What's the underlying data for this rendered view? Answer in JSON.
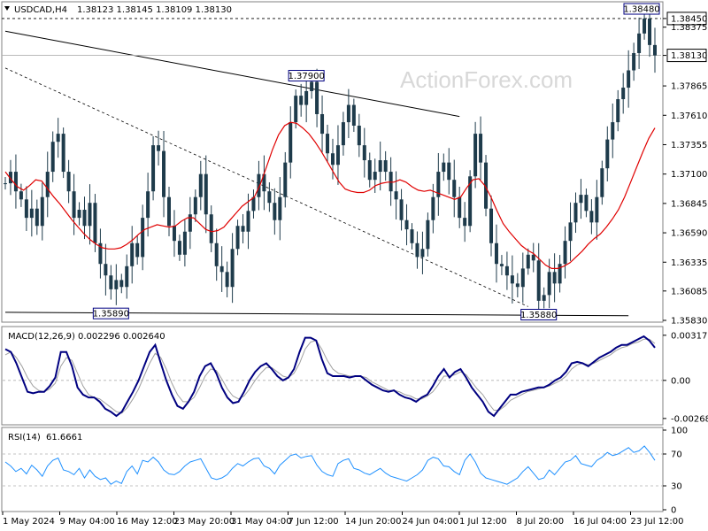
{
  "header": {
    "symbol": "USDCAD,H4",
    "ohlc": "1.38123 1.38145 1.38109 1.38130",
    "watermark": "ActionForex.com"
  },
  "chart_data": [
    {
      "type": "candlestick",
      "name": "USDCAD,H4",
      "ylim": [
        1.3583,
        1.3858
      ],
      "yticks": [
        "1.38450",
        "1.38375",
        "1.38130",
        "1.37865",
        "1.37610",
        "1.37355",
        "1.37100",
        "1.36845",
        "1.36590",
        "1.36335",
        "1.36085",
        "1.35830"
      ],
      "current_price": "1.38130",
      "annotations": [
        {
          "label": "1.38480",
          "x_index": 121,
          "value": 1.3848
        },
        {
          "label": "1.37900",
          "x_index": 57,
          "value": 1.379
        },
        {
          "label": "1.35890",
          "x_index": 20,
          "value": 1.3589
        },
        {
          "label": "1.35880",
          "x_index": 101,
          "value": 1.3588
        }
      ],
      "moving_average_color": "#e00000",
      "candle_color": "#1e3b4b",
      "closes": [
        1.3702,
        1.3712,
        1.3695,
        1.3688,
        1.3672,
        1.368,
        1.3665,
        1.369,
        1.3712,
        1.3738,
        1.3745,
        1.3712,
        1.3695,
        1.3672,
        1.3679,
        1.3665,
        1.3685,
        1.365,
        1.3632,
        1.3622,
        1.361,
        1.3618,
        1.3612,
        1.363,
        1.365,
        1.3638,
        1.3672,
        1.3695,
        1.3735,
        1.373,
        1.369,
        1.3665,
        1.3652,
        1.364,
        1.366,
        1.3675,
        1.369,
        1.371,
        1.3675,
        1.365,
        1.363,
        1.3625,
        1.3612,
        1.3645,
        1.3665,
        1.366,
        1.3678,
        1.369,
        1.371,
        1.3695,
        1.3685,
        1.367,
        1.369,
        1.372,
        1.3755,
        1.3778,
        1.377,
        1.3782,
        1.379,
        1.3762,
        1.3745,
        1.3728,
        1.3718,
        1.3735,
        1.3755,
        1.377,
        1.3752,
        1.3735,
        1.3722,
        1.3705,
        1.3712,
        1.3722,
        1.3712,
        1.3695,
        1.3688,
        1.367,
        1.3662,
        1.365,
        1.3638,
        1.3645,
        1.367,
        1.369,
        1.3712,
        1.372,
        1.3705,
        1.369,
        1.3672,
        1.3665,
        1.3708,
        1.3745,
        1.372,
        1.368,
        1.365,
        1.3632,
        1.363,
        1.3622,
        1.3615,
        1.3612,
        1.3628,
        1.364,
        1.3635,
        1.36,
        1.3605,
        1.3625,
        1.3615,
        1.3632,
        1.3652,
        1.3668,
        1.3685,
        1.3692,
        1.3678,
        1.3668,
        1.369,
        1.3715,
        1.374,
        1.3755,
        1.3775,
        1.3785,
        1.38,
        1.3815,
        1.3832,
        1.3845,
        1.3822,
        1.3813
      ],
      "moving_average": [
        1.3712,
        1.3705,
        1.3699,
        1.3696,
        1.37,
        1.3705,
        1.3704,
        1.3697,
        1.369,
        1.3684,
        1.3677,
        1.367,
        1.3664,
        1.3658,
        1.3653,
        1.3649,
        1.3646,
        1.3645,
        1.3645,
        1.3646,
        1.3649,
        1.3653,
        1.3658,
        1.3662,
        1.3664,
        1.3666,
        1.3665,
        1.3664,
        1.3665,
        1.3669,
        1.3672,
        1.3672,
        1.3667,
        1.3662,
        1.366,
        1.3661,
        1.3664,
        1.367,
        1.3676,
        1.3682,
        1.3686,
        1.369,
        1.3701,
        1.3716,
        1.3731,
        1.3744,
        1.3752,
        1.3755,
        1.3754,
        1.375,
        1.3745,
        1.3738,
        1.373,
        1.3721,
        1.3712,
        1.3703,
        1.3697,
        1.3695,
        1.3694,
        1.3694,
        1.3696,
        1.37,
        1.3702,
        1.3703,
        1.3703,
        1.3705,
        1.3703,
        1.3699,
        1.3696,
        1.3695,
        1.3696,
        1.3694,
        1.3692,
        1.369,
        1.3688,
        1.369,
        1.3698,
        1.3705,
        1.3706,
        1.37,
        1.369,
        1.3678,
        1.3667,
        1.366,
        1.3654,
        1.3648,
        1.3644,
        1.3641,
        1.3636,
        1.3631,
        1.3628,
        1.3628,
        1.363,
        1.3633,
        1.3638,
        1.3643,
        1.3649,
        1.3654,
        1.3658,
        1.3664,
        1.3671,
        1.3679,
        1.369,
        1.3703,
        1.3716,
        1.3729,
        1.3741,
        1.375
      ]
    },
    {
      "type": "line",
      "name": "MACD(12,26,9)",
      "values_label": "0.002296 0.002640",
      "yticks": [
        "0.003175",
        "0.00",
        "-0.00268"
      ],
      "ylim": [
        -0.003,
        0.0036
      ],
      "main_color": "#000080",
      "signal_color": "#a0a0a0",
      "macd": [
        0.0022,
        0.002,
        0.0012,
        0.0002,
        -0.0008,
        -0.0009,
        -0.0008,
        -0.0008,
        -0.0004,
        0.0002,
        0.002,
        0.002,
        0.001,
        -0.0005,
        -0.001,
        -0.0012,
        -0.0012,
        -0.0015,
        -0.002,
        -0.0022,
        -0.0025,
        -0.0022,
        -0.0015,
        -0.0008,
        0.0,
        0.001,
        0.002,
        0.0025,
        0.0012,
        0.0,
        -0.001,
        -0.0018,
        -0.002,
        -0.0015,
        -0.0008,
        0.0003,
        0.001,
        0.0012,
        0.0005,
        -0.0005,
        -0.0012,
        -0.0016,
        -0.0015,
        -0.0008,
        0.0,
        0.0006,
        0.001,
        0.0012,
        0.0008,
        0.0003,
        0.0,
        0.0002,
        0.0008,
        0.002,
        0.003,
        0.003,
        0.0028,
        0.0015,
        0.0005,
        0.0003,
        0.0003,
        0.0003,
        0.0002,
        0.0003,
        0.0003,
        0.0,
        -0.0003,
        -0.0005,
        -0.0007,
        -0.0008,
        -0.0007,
        -0.001,
        -0.0012,
        -0.0013,
        -0.0015,
        -0.0012,
        -0.001,
        -0.0004,
        0.0003,
        0.0008,
        0.0002,
        0.0006,
        0.0008,
        0.0002,
        -0.0005,
        -0.001,
        -0.0015,
        -0.0022,
        -0.0025,
        -0.002,
        -0.0015,
        -0.001,
        -0.001,
        -0.0008,
        -0.0007,
        -0.0006,
        -0.0005,
        -0.0005,
        -0.0003,
        0.0,
        0.0002,
        0.0006,
        0.0012,
        0.0013,
        0.0012,
        0.001,
        0.0013,
        0.0016,
        0.0018,
        0.002,
        0.0023,
        0.0025,
        0.0025,
        0.0027,
        0.0029,
        0.0031,
        0.0028,
        0.0023
      ],
      "signal": [
        0.0018,
        0.002,
        0.0016,
        0.001,
        0.0002,
        -0.0004,
        -0.0007,
        -0.0008,
        -0.0006,
        -0.0002,
        0.001,
        0.0016,
        0.0014,
        0.0005,
        -0.0004,
        -0.001,
        -0.0012,
        -0.0013,
        -0.0016,
        -0.0019,
        -0.0022,
        -0.0023,
        -0.0019,
        -0.0013,
        -0.0006,
        0.0003,
        0.0012,
        0.0019,
        0.0016,
        0.0008,
        -0.0002,
        -0.001,
        -0.0015,
        -0.0015,
        -0.0012,
        -0.0005,
        0.0003,
        0.0008,
        0.0007,
        0.0001,
        -0.0006,
        -0.0011,
        -0.0013,
        -0.0011,
        -0.0006,
        0.0,
        0.0005,
        0.0009,
        0.0009,
        0.0006,
        0.0003,
        0.0002,
        0.0005,
        0.0012,
        0.0022,
        0.0027,
        0.0028,
        0.0022,
        0.0014,
        0.0008,
        0.0005,
        0.0004,
        0.0003,
        0.0003,
        0.0003,
        0.0002,
        -0.0001,
        -0.0003,
        -0.0005,
        -0.0007,
        -0.0007,
        -0.0008,
        -0.001,
        -0.0011,
        -0.0013,
        -0.0013,
        -0.0011,
        -0.0008,
        -0.0003,
        0.0003,
        0.0003,
        0.0004,
        0.0006,
        0.0004,
        -0.0001,
        -0.0006,
        -0.001,
        -0.0016,
        -0.0021,
        -0.0021,
        -0.0018,
        -0.0014,
        -0.0012,
        -0.001,
        -0.0008,
        -0.0007,
        -0.0006,
        -0.0005,
        -0.0004,
        -0.0002,
        0.0,
        0.0003,
        0.0008,
        0.0011,
        0.0012,
        0.0011,
        0.0012,
        0.0014,
        0.0016,
        0.0018,
        0.0021,
        0.0023,
        0.0024,
        0.0026,
        0.0027,
        0.0029,
        0.0029,
        0.0026
      ]
    },
    {
      "type": "line",
      "name": "RSI(14)",
      "values_label": "61.6661",
      "yticks": [
        "100",
        "70",
        "30",
        "0"
      ],
      "ylim": [
        0,
        100
      ],
      "line_color": "#1e90ff",
      "values": [
        60,
        55,
        48,
        52,
        45,
        56,
        50,
        42,
        55,
        62,
        65,
        50,
        48,
        44,
        52,
        40,
        50,
        42,
        38,
        40,
        32,
        36,
        33,
        48,
        55,
        45,
        62,
        60,
        66,
        60,
        50,
        45,
        44,
        48,
        55,
        60,
        62,
        64,
        52,
        40,
        38,
        40,
        44,
        52,
        58,
        55,
        60,
        64,
        65,
        55,
        52,
        45,
        56,
        62,
        68,
        70,
        65,
        67,
        68,
        56,
        48,
        44,
        42,
        58,
        62,
        64,
        52,
        50,
        46,
        44,
        48,
        52,
        46,
        42,
        40,
        38,
        36,
        40,
        44,
        50,
        62,
        66,
        64,
        55,
        54,
        48,
        44,
        62,
        70,
        60,
        46,
        40,
        38,
        36,
        34,
        32,
        36,
        40,
        48,
        54,
        46,
        38,
        40,
        50,
        44,
        52,
        60,
        62,
        68,
        58,
        56,
        54,
        62,
        66,
        72,
        68,
        70,
        74,
        78,
        72,
        74,
        80,
        72,
        62
      ],
      "levels": [
        70,
        30
      ]
    }
  ],
  "x_axis": {
    "ticks": [
      "1 May 2024",
      "9 May 04:00",
      "16 May 12:00",
      "23 May 20:00",
      "31 May 04:00",
      "7 Jun 12:00",
      "14 Jun 20:00",
      "24 Jun 04:00",
      "1 Jul 12:00",
      "8 Jul 20:00",
      "16 Jul 04:00",
      "23 Jul 12:00"
    ]
  }
}
